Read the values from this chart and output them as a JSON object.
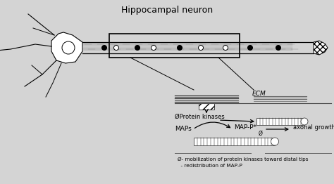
{
  "bg_color": "#d4d4d4",
  "title": "Hippocampal neuron",
  "title_fontsize": 9,
  "footnote1": "Ø- mobilization of protein kinases toward distal tips",
  "footnote2": "  - redistribution of MAP-P",
  "footnote_fontsize": 5.2,
  "label_ECM": "ECM",
  "label_protein_kinases": "ØProtein kinases",
  "label_MAPs": "MAPs",
  "label_MAPP": "MAP-P*",
  "label_axonal": "axonal growth",
  "label_circle2": "Ø"
}
